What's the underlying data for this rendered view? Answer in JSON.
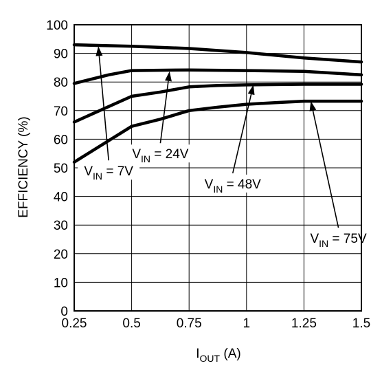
{
  "chart_data": {
    "type": "line",
    "xlabel": {
      "main": "I",
      "sub": "OUT",
      "unit": " (A)"
    },
    "ylabel": "EFFICIENCY (%)",
    "xlim": [
      0.25,
      1.5
    ],
    "ylim": [
      0,
      100
    ],
    "x_ticks": [
      "0.25",
      "0.5",
      "0.75",
      "1",
      "1.25",
      "1.5"
    ],
    "x_tick_values": [
      0.25,
      0.5,
      0.75,
      1.0,
      1.25,
      1.5
    ],
    "y_ticks": [
      "0",
      "10",
      "20",
      "30",
      "40",
      "50",
      "60",
      "70",
      "80",
      "90",
      "100"
    ],
    "y_tick_values": [
      0,
      10,
      20,
      30,
      40,
      50,
      60,
      70,
      80,
      90,
      100
    ],
    "grid": true,
    "series": [
      {
        "name": "VIN = 7V",
        "x": [
          0.25,
          0.5,
          0.75,
          1.0,
          1.25,
          1.5
        ],
        "y": [
          93,
          92.5,
          91.7,
          90.3,
          88.4,
          87.0
        ]
      },
      {
        "name": "VIN = 24V",
        "x": [
          0.25,
          0.4,
          0.5,
          0.75,
          1.0,
          1.25,
          1.5
        ],
        "y": [
          79.5,
          82.5,
          84,
          84.2,
          84.0,
          83.7,
          82.5
        ]
      },
      {
        "name": "VIN = 48V",
        "x": [
          0.25,
          0.5,
          0.625,
          0.75,
          0.875,
          1.0,
          1.25,
          1.5
        ],
        "y": [
          66,
          75,
          76.5,
          78.3,
          78.8,
          79.0,
          79.2,
          79.2
        ]
      },
      {
        "name": "VIN = 75V",
        "x": [
          0.25,
          0.5,
          0.625,
          0.75,
          0.875,
          1.0,
          1.125,
          1.25,
          1.5
        ],
        "y": [
          52,
          64.5,
          67,
          70,
          71.2,
          72.2,
          72.8,
          73.3,
          73.3
        ]
      }
    ],
    "annotations": [
      {
        "pre": "V",
        "sub": "IN",
        "post": " = 7V",
        "series": 0,
        "text_x": 0.4,
        "text_y": 49,
        "target": [
          0.355,
          92.5
        ]
      },
      {
        "pre": "V",
        "sub": "IN",
        "post": " = 24V",
        "series": 1,
        "text_x": 0.625,
        "text_y": 55,
        "target": [
          0.665,
          83.7
        ]
      },
      {
        "pre": "V",
        "sub": "IN",
        "post": " = 48V",
        "series": 2,
        "text_x": 0.94,
        "text_y": 44.5,
        "target": [
          1.03,
          79.0
        ]
      },
      {
        "pre": "V",
        "sub": "IN",
        "post": " = 75V",
        "series": 3,
        "text_x": 1.4,
        "text_y": 25.5,
        "target": [
          1.28,
          73.3
        ]
      }
    ]
  }
}
